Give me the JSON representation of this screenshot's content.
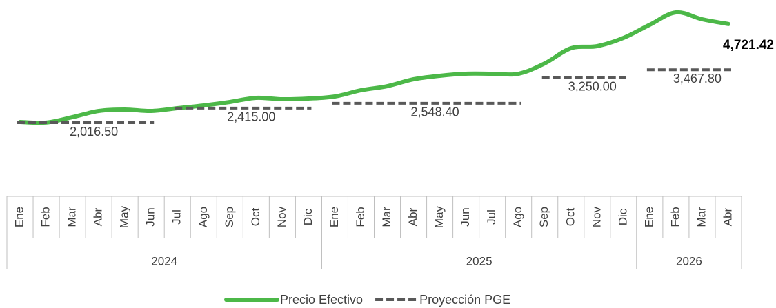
{
  "chart_data": {
    "type": "line",
    "categories": [
      "Ene",
      "Feb",
      "Mar",
      "Abr",
      "May",
      "Jun",
      "Jul",
      "Ago",
      "Sep",
      "Oct",
      "Nov",
      "Dic",
      "Ene",
      "Feb",
      "Mar",
      "Abr",
      "May",
      "Jun",
      "Jul",
      "Ago",
      "Sep",
      "Oct",
      "Nov",
      "Dic",
      "Ene",
      "Feb",
      "Mar",
      "Abr"
    ],
    "category_groups": [
      "2024",
      "2025",
      "2026"
    ],
    "series": [
      {
        "name": "Precio Efectivo",
        "color": "#4cb848",
        "values": [
          2035,
          2020,
          2168,
          2338,
          2376,
          2338,
          2413,
          2489,
          2584,
          2697,
          2659,
          2678,
          2735,
          2905,
          3018,
          3207,
          3302,
          3358,
          3358,
          3358,
          3642,
          4058,
          4114,
          4341,
          4700,
          5040,
          4851,
          4721.42
        ],
        "value_labels": [
          null,
          null,
          null,
          null,
          null,
          null,
          null,
          null,
          null,
          null,
          null,
          null,
          null,
          null,
          null,
          null,
          null,
          null,
          null,
          null,
          null,
          null,
          null,
          null,
          null,
          null,
          null,
          "4,721.42"
        ]
      },
      {
        "name": "Proyección PGE",
        "color": "#595959",
        "dashed": true,
        "values": [
          2016.5,
          2016.5,
          2016.5,
          2016.5,
          2016.5,
          2016.5,
          2415,
          2415,
          2415,
          2415,
          2415,
          2415,
          2548.4,
          2548.4,
          2548.4,
          2548.4,
          2548.4,
          2548.4,
          2548.4,
          2548.4,
          3250,
          3250,
          3250,
          3250,
          3467.8,
          3467.8,
          3467.8,
          3467.8
        ],
        "value_labels": [
          "2,016.50",
          null,
          null,
          null,
          null,
          null,
          "2,415.00",
          null,
          null,
          null,
          null,
          null,
          "2,548.40",
          null,
          null,
          null,
          null,
          null,
          null,
          null,
          "3,250.00",
          null,
          null,
          null,
          "3,467.80",
          null,
          null,
          null
        ]
      }
    ],
    "legend": "bottom"
  }
}
